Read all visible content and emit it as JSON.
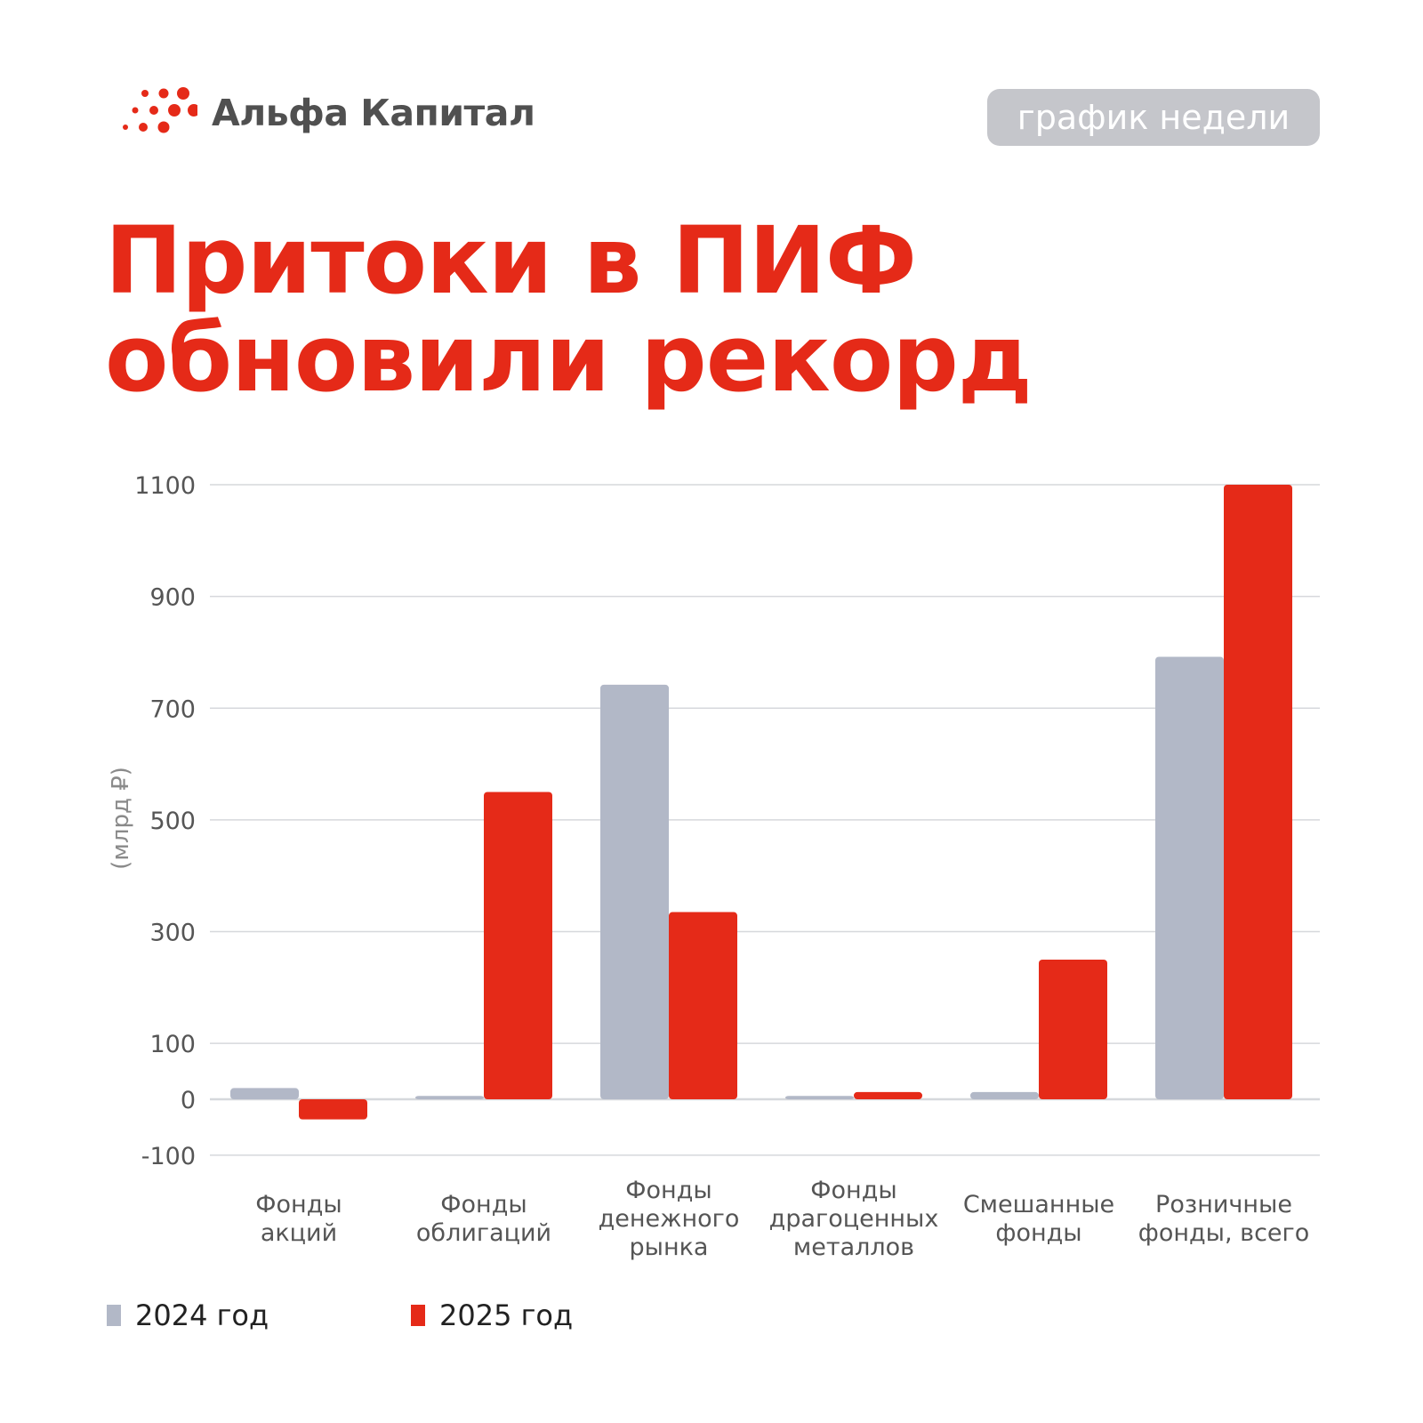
{
  "brand": {
    "name": "Альфа Капитал",
    "badge": "график недели"
  },
  "title": {
    "line1": "Притоки в ПИФ",
    "line2": "обновили рекорд"
  },
  "colors": {
    "s2024": "#b2b8c7",
    "s2025": "#e52a18",
    "grid": "#d6d8dc",
    "axis_text": "#555555"
  },
  "chart_data": {
    "type": "bar",
    "title": "Притоки в ПИФ обновили рекорд",
    "ylabel": "(млрд ₽)",
    "xlabel": "",
    "ylim": [
      -100,
      1100
    ],
    "yticks": [
      1100,
      900,
      700,
      500,
      300,
      100,
      0,
      -100
    ],
    "ytick_labels": [
      "1100",
      "900",
      "700",
      "500",
      "300",
      "100",
      "0",
      "-100"
    ],
    "grid": true,
    "legend_position": "bottom-left",
    "categories": [
      [
        "Фонды",
        "акций"
      ],
      [
        "Фонды",
        "облигаций"
      ],
      [
        "Фонды",
        "денежного",
        "рынка"
      ],
      [
        "Фонды",
        "драгоценных",
        "металлов"
      ],
      [
        "Смешанные",
        "фонды"
      ],
      [
        "Розничные",
        "фонды, всего"
      ]
    ],
    "series": [
      {
        "name": "2024 год",
        "values": [
          20,
          6,
          742,
          6,
          13,
          792
        ]
      },
      {
        "name": "2025 год",
        "values": [
          -36,
          550,
          335,
          13,
          250,
          1100
        ]
      }
    ]
  }
}
